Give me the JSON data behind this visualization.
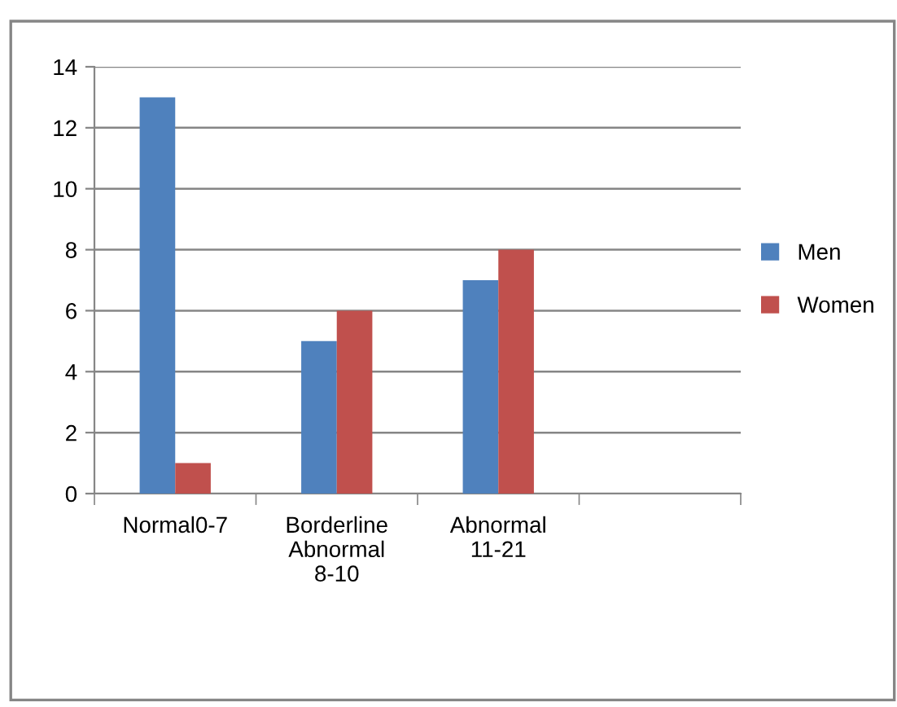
{
  "chart_data": {
    "type": "bar",
    "categories": [
      "Normal0-7",
      "Borderline Abnormal 8-10",
      "Abnormal 11-21",
      null
    ],
    "series": [
      {
        "name": "Men",
        "color": "#4f81bd",
        "values": [
          13,
          5,
          7,
          null
        ]
      },
      {
        "name": "Women",
        "color": "#c0504d",
        "values": [
          1,
          6,
          8,
          null
        ]
      }
    ],
    "ylim": [
      0,
      14
    ],
    "yticks": [
      0,
      2,
      4,
      6,
      8,
      10,
      12,
      14
    ],
    "grid": "y",
    "legend": "right"
  }
}
